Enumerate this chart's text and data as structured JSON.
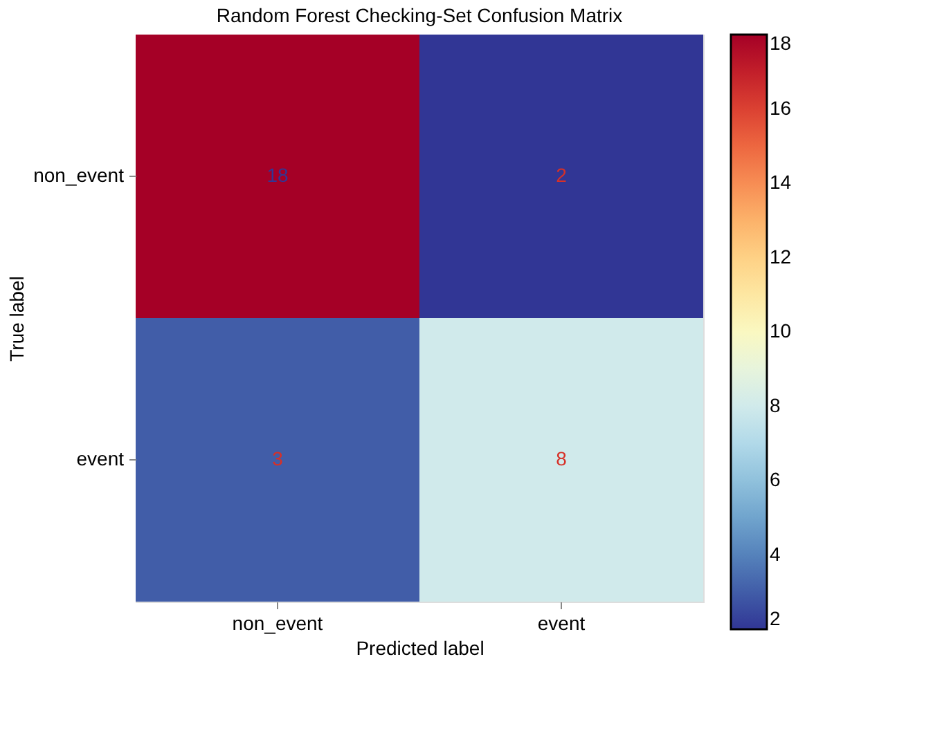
{
  "chart_data": {
    "type": "heatmap",
    "title": "Random Forest Checking-Set Confusion Matrix",
    "xlabel": "Predicted label",
    "ylabel": "True label",
    "categories": [
      "non_event",
      "event"
    ],
    "y_categories": [
      "non_event",
      "event"
    ],
    "cells": [
      [
        18,
        2
      ],
      [
        3,
        8
      ]
    ],
    "clim": [
      2,
      18
    ],
    "cticks": [
      2,
      4,
      6,
      8,
      10,
      12,
      14,
      16,
      18
    ],
    "data_labels": true
  }
}
